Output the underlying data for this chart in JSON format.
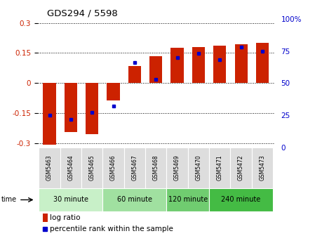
{
  "title": "GDS294 / 5598",
  "samples": [
    "GSM5463",
    "GSM5464",
    "GSM5465",
    "GSM5466",
    "GSM5467",
    "GSM5468",
    "GSM5469",
    "GSM5470",
    "GSM5471",
    "GSM5472",
    "GSM5473"
  ],
  "log_ratio": [
    -0.305,
    -0.245,
    -0.255,
    -0.085,
    0.085,
    0.135,
    0.175,
    0.18,
    0.185,
    0.195,
    0.2
  ],
  "percentile": [
    25,
    22,
    27,
    32,
    66,
    53,
    70,
    73,
    68,
    78,
    75
  ],
  "groups": [
    {
      "label": "30 minute",
      "start": 0,
      "end": 3,
      "color": "#c8f0c8"
    },
    {
      "label": "60 minute",
      "start": 3,
      "end": 6,
      "color": "#a0e0a0"
    },
    {
      "label": "120 minute",
      "start": 6,
      "end": 8,
      "color": "#70cc70"
    },
    {
      "label": "240 minute",
      "start": 8,
      "end": 11,
      "color": "#44bb44"
    }
  ],
  "ylim": [
    -0.32,
    0.32
  ],
  "yticks": [
    -0.3,
    -0.15,
    0,
    0.15,
    0.3
  ],
  "ytick_labels_left": [
    "-0.3",
    "-0.15",
    "0",
    "0.15",
    "0.3"
  ],
  "yticks_right_pct": [
    0,
    25,
    50,
    75,
    100
  ],
  "ytick_labels_right": [
    "0",
    "25",
    "50",
    "75",
    "100%"
  ],
  "bar_color": "#cc2200",
  "dot_color": "#0000cc",
  "left_tick_color": "#cc2200",
  "right_tick_color": "#0000cc",
  "bg_color": "#ffffff",
  "sample_box_color": "#dddddd",
  "legend_bar_color": "#cc2200",
  "legend_dot_color": "#0000cc"
}
